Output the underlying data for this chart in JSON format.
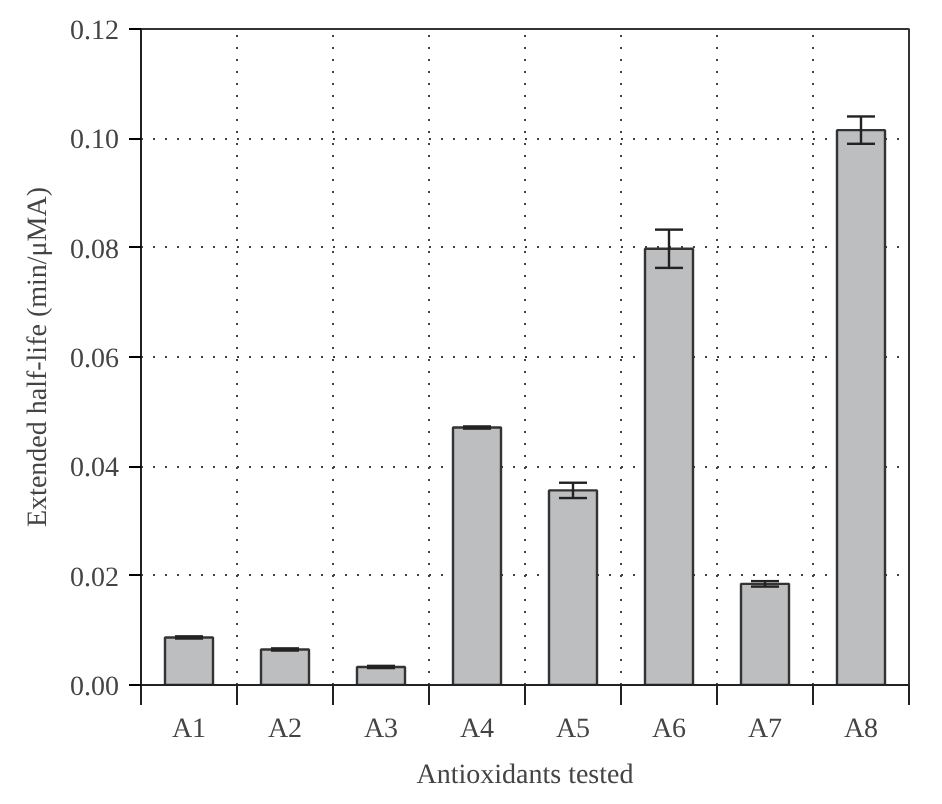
{
  "chart_data": {
    "type": "bar",
    "xlabel": "Antioxidants tested",
    "ylabel": "Extended half-life (min/μMA)",
    "categories": [
      "A1",
      "A2",
      "A3",
      "A4",
      "A5",
      "A6",
      "A7",
      "A8"
    ],
    "values": [
      0.0087,
      0.0065,
      0.0033,
      0.0471,
      0.0356,
      0.0798,
      0.0185,
      0.1015
    ],
    "errors": [
      0.0002,
      0.0002,
      0.0002,
      0.0002,
      0.0014,
      0.0035,
      0.0005,
      0.0025
    ],
    "color": "#bdbec0",
    "ylim": [
      0,
      0.12
    ],
    "yticks": [
      {
        "value": 0,
        "label": "0.00"
      },
      {
        "value": 0.02,
        "label": "0.02"
      },
      {
        "value": 0.04,
        "label": "0.04"
      },
      {
        "value": 0.06,
        "label": "0.06"
      },
      {
        "value": 0.08,
        "label": "0.08"
      },
      {
        "value": 0.1,
        "label": "0.10"
      },
      {
        "value": 0.12,
        "label": "0.12"
      }
    ],
    "grid": true
  }
}
